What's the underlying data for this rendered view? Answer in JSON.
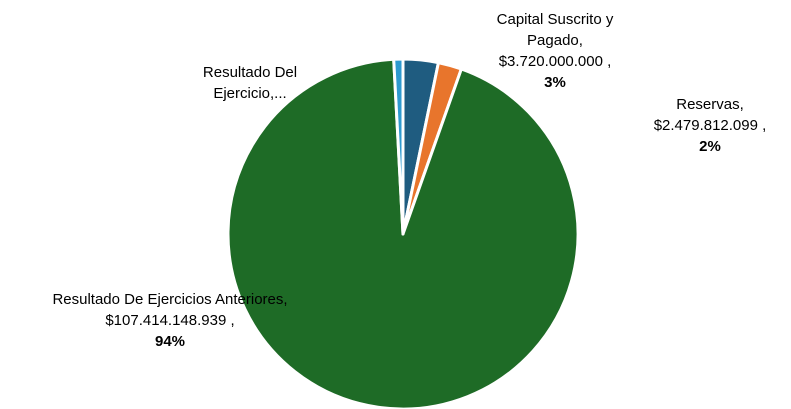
{
  "chart_data": {
    "type": "pie",
    "slices": [
      {
        "name_lines": [
          "Capital  Suscrito y",
          "Pagado,"
        ],
        "value_text": "$3.720.000.000 ,",
        "percent_text": "3%",
        "value": 3720000000,
        "color": "#1f5c80"
      },
      {
        "name_lines": [
          "Reservas,"
        ],
        "value_text": "$2.479.812.099 ,",
        "percent_text": "2%",
        "value": 2479812099,
        "color": "#e8752c"
      },
      {
        "name_lines": [
          "Resultado De Ejercicios Anteriores,"
        ],
        "value_text": "$107.414.148.939 ,",
        "percent_text": "94%",
        "value": 107414148939,
        "color": "#1e6b26"
      },
      {
        "name_lines": [
          "Resultado Del",
          "Ejercicio,..."
        ],
        "value_text": "",
        "percent_text": "",
        "value": 970000000,
        "color": "#2e9ad0"
      }
    ]
  }
}
